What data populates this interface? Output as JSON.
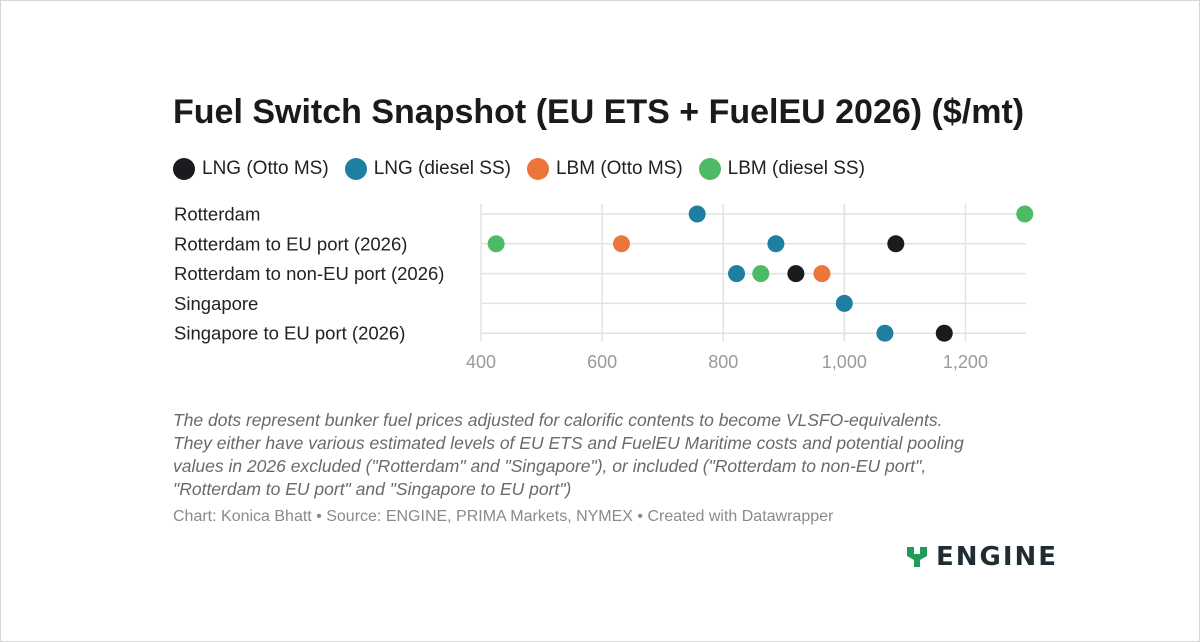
{
  "title": "Fuel Switch Snapshot (EU ETS + FuelEU 2026) ($/mt)",
  "legend": [
    {
      "label": "LNG (Otto MS)",
      "color": "#1a1a1f"
    },
    {
      "label": "LNG (diesel SS)",
      "color": "#1e7fa1"
    },
    {
      "label": "LBM (Otto MS)",
      "color": "#ec7539"
    },
    {
      "label": "LBM (diesel SS)",
      "color": "#4dbb65"
    }
  ],
  "chart_data": {
    "type": "scatter",
    "title": "Fuel Switch Snapshot (EU ETS + FuelEU 2026) ($/mt)",
    "categories": [
      "Rotterdam",
      "Rotterdam to EU port (2026)",
      "Rotterdam to non-EU port (2026)",
      "Singapore",
      "Singapore to EU port (2026)"
    ],
    "series": [
      {
        "name": "LNG (Otto MS)",
        "color": "#1a1a1f",
        "values": [
          null,
          1085,
          920,
          null,
          1165
        ]
      },
      {
        "name": "LNG (diesel SS)",
        "color": "#1e7fa1",
        "values": [
          757,
          887,
          822,
          1000,
          1067
        ]
      },
      {
        "name": "LBM (Otto MS)",
        "color": "#ec7539",
        "values": [
          null,
          632,
          963,
          null,
          null
        ]
      },
      {
        "name": "LBM (diesel SS)",
        "color": "#4dbb65",
        "values": [
          1298,
          425,
          862,
          null,
          null
        ]
      }
    ],
    "xlim": [
      400,
      1300
    ],
    "xticks": [
      400,
      600,
      800,
      1000,
      1200
    ],
    "xtick_labels": [
      "400",
      "600",
      "800",
      "1,000",
      "1,200"
    ],
    "xlabel": "",
    "ylabel": "",
    "grid": true,
    "legend_position": "top"
  },
  "notes": [
    "The dots represent bunker fuel prices adjusted for calorific contents to become VLSFO-equivalents.",
    "They either have various estimated levels of EU ETS and FuelEU Maritime costs and potential pooling",
    "values in 2026 excluded (\"Rotterdam\" and \"Singapore\"), or included (\"Rotterdam to non-EU port\",",
    "\"Rotterdam to EU port\" and \"Singapore to EU port\")"
  ],
  "credit": "Chart: Konica Bhatt • Source: ENGINE, PRIMA Markets, NYMEX • Created with Datawrapper",
  "logo": {
    "text": "ENGINE",
    "color": "#1f9c5a"
  }
}
